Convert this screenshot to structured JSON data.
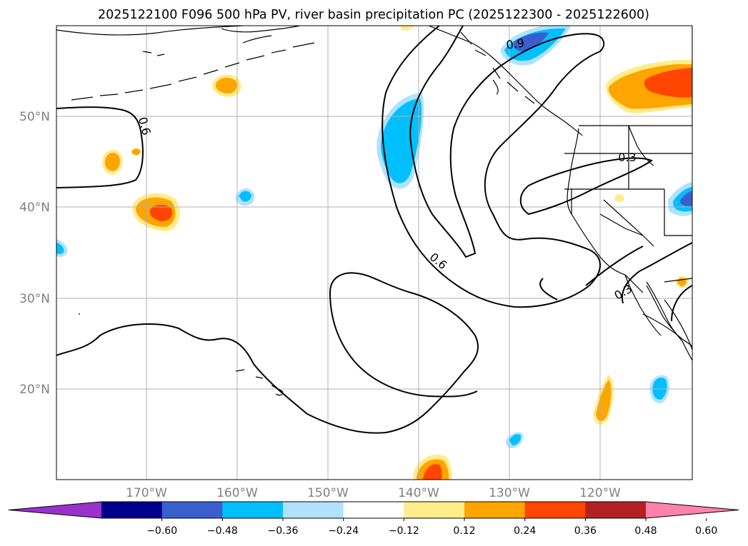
{
  "title": "2025122100 F096 500 hPa PV, river basin precipitation PC (2025122300 - 2025122600)",
  "map": {
    "lat_labels": [
      "50°N",
      "40°N",
      "30°N",
      "20°N"
    ],
    "lon_labels": [
      "170°W",
      "160°W",
      "150°W",
      "140°W",
      "130°W",
      "120°W"
    ],
    "contour_labels": [
      "0.9",
      "0.6",
      "0.3",
      "0.6",
      "0.3"
    ]
  },
  "colorbar": {
    "ticks": [
      "−0.60",
      "−0.48",
      "−0.36",
      "−0.24",
      "−0.12",
      "0.12",
      "0.24",
      "0.36",
      "0.48",
      "0.60"
    ],
    "colors": [
      "#9932cc",
      "#00008b",
      "#3a5fcd",
      "#00bfff",
      "#b0e2ff",
      "#ffffff",
      "#ffec8b",
      "#ffa500",
      "#ff4500",
      "#b22222",
      "#ff82ab"
    ]
  }
}
